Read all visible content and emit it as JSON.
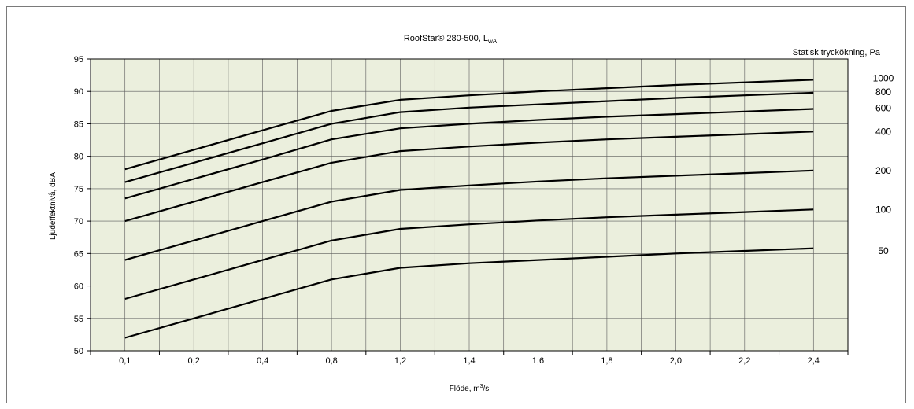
{
  "chart_data": {
    "type": "line",
    "title": "RoofStar® 280-500, L",
    "title_sub": "wA",
    "xlabel": "Flöde, m",
    "xlabel_sup": "3",
    "xlabel_tail": "/s",
    "ylabel": "Ljudeffektnivå, dBA",
    "right_axis_title": "Statisk tryckökning, Pa",
    "x_categories": [
      "0,1",
      "0,2",
      "0,4",
      "0,8",
      "1,2",
      "1,4",
      "1,6",
      "1,8",
      "2,0",
      "2,2",
      "2,4"
    ],
    "ylim": [
      50,
      95
    ],
    "y_ticks": [
      50,
      55,
      60,
      65,
      70,
      75,
      80,
      85,
      90,
      95
    ],
    "grid": true,
    "plot_background": "#ebefdd",
    "line_color": "#000000",
    "series": [
      {
        "name": "1000",
        "values": [
          78,
          81,
          84,
          87,
          88.7,
          89.4,
          90,
          90.5,
          91,
          91.4,
          91.8
        ]
      },
      {
        "name": "800",
        "values": [
          76,
          79,
          82,
          85,
          86.8,
          87.5,
          88,
          88.5,
          89,
          89.4,
          89.8
        ]
      },
      {
        "name": "600",
        "values": [
          73.5,
          76.5,
          79.5,
          82.6,
          84.3,
          85,
          85.6,
          86.1,
          86.5,
          86.9,
          87.3
        ]
      },
      {
        "name": "400",
        "values": [
          70,
          73,
          76,
          79,
          80.8,
          81.5,
          82.1,
          82.6,
          83,
          83.4,
          83.8
        ]
      },
      {
        "name": "200",
        "values": [
          64,
          67,
          70,
          73,
          74.8,
          75.5,
          76.1,
          76.6,
          77,
          77.4,
          77.8
        ]
      },
      {
        "name": "100",
        "values": [
          58,
          61,
          64,
          67,
          68.8,
          69.5,
          70.1,
          70.6,
          71,
          71.4,
          71.8
        ]
      },
      {
        "name": "50",
        "values": [
          52,
          55,
          58,
          61,
          62.8,
          63.5,
          64,
          64.5,
          65,
          65.4,
          65.8
        ]
      }
    ],
    "right_labels": [
      {
        "text": "1000",
        "y": 92
      },
      {
        "text": "800",
        "y": 89.9
      },
      {
        "text": "600",
        "y": 87.4
      },
      {
        "text": "400",
        "y": 83.8
      },
      {
        "text": "200",
        "y": 77.8
      },
      {
        "text": "100",
        "y": 71.8
      },
      {
        "text": "50",
        "y": 65.4
      }
    ]
  }
}
